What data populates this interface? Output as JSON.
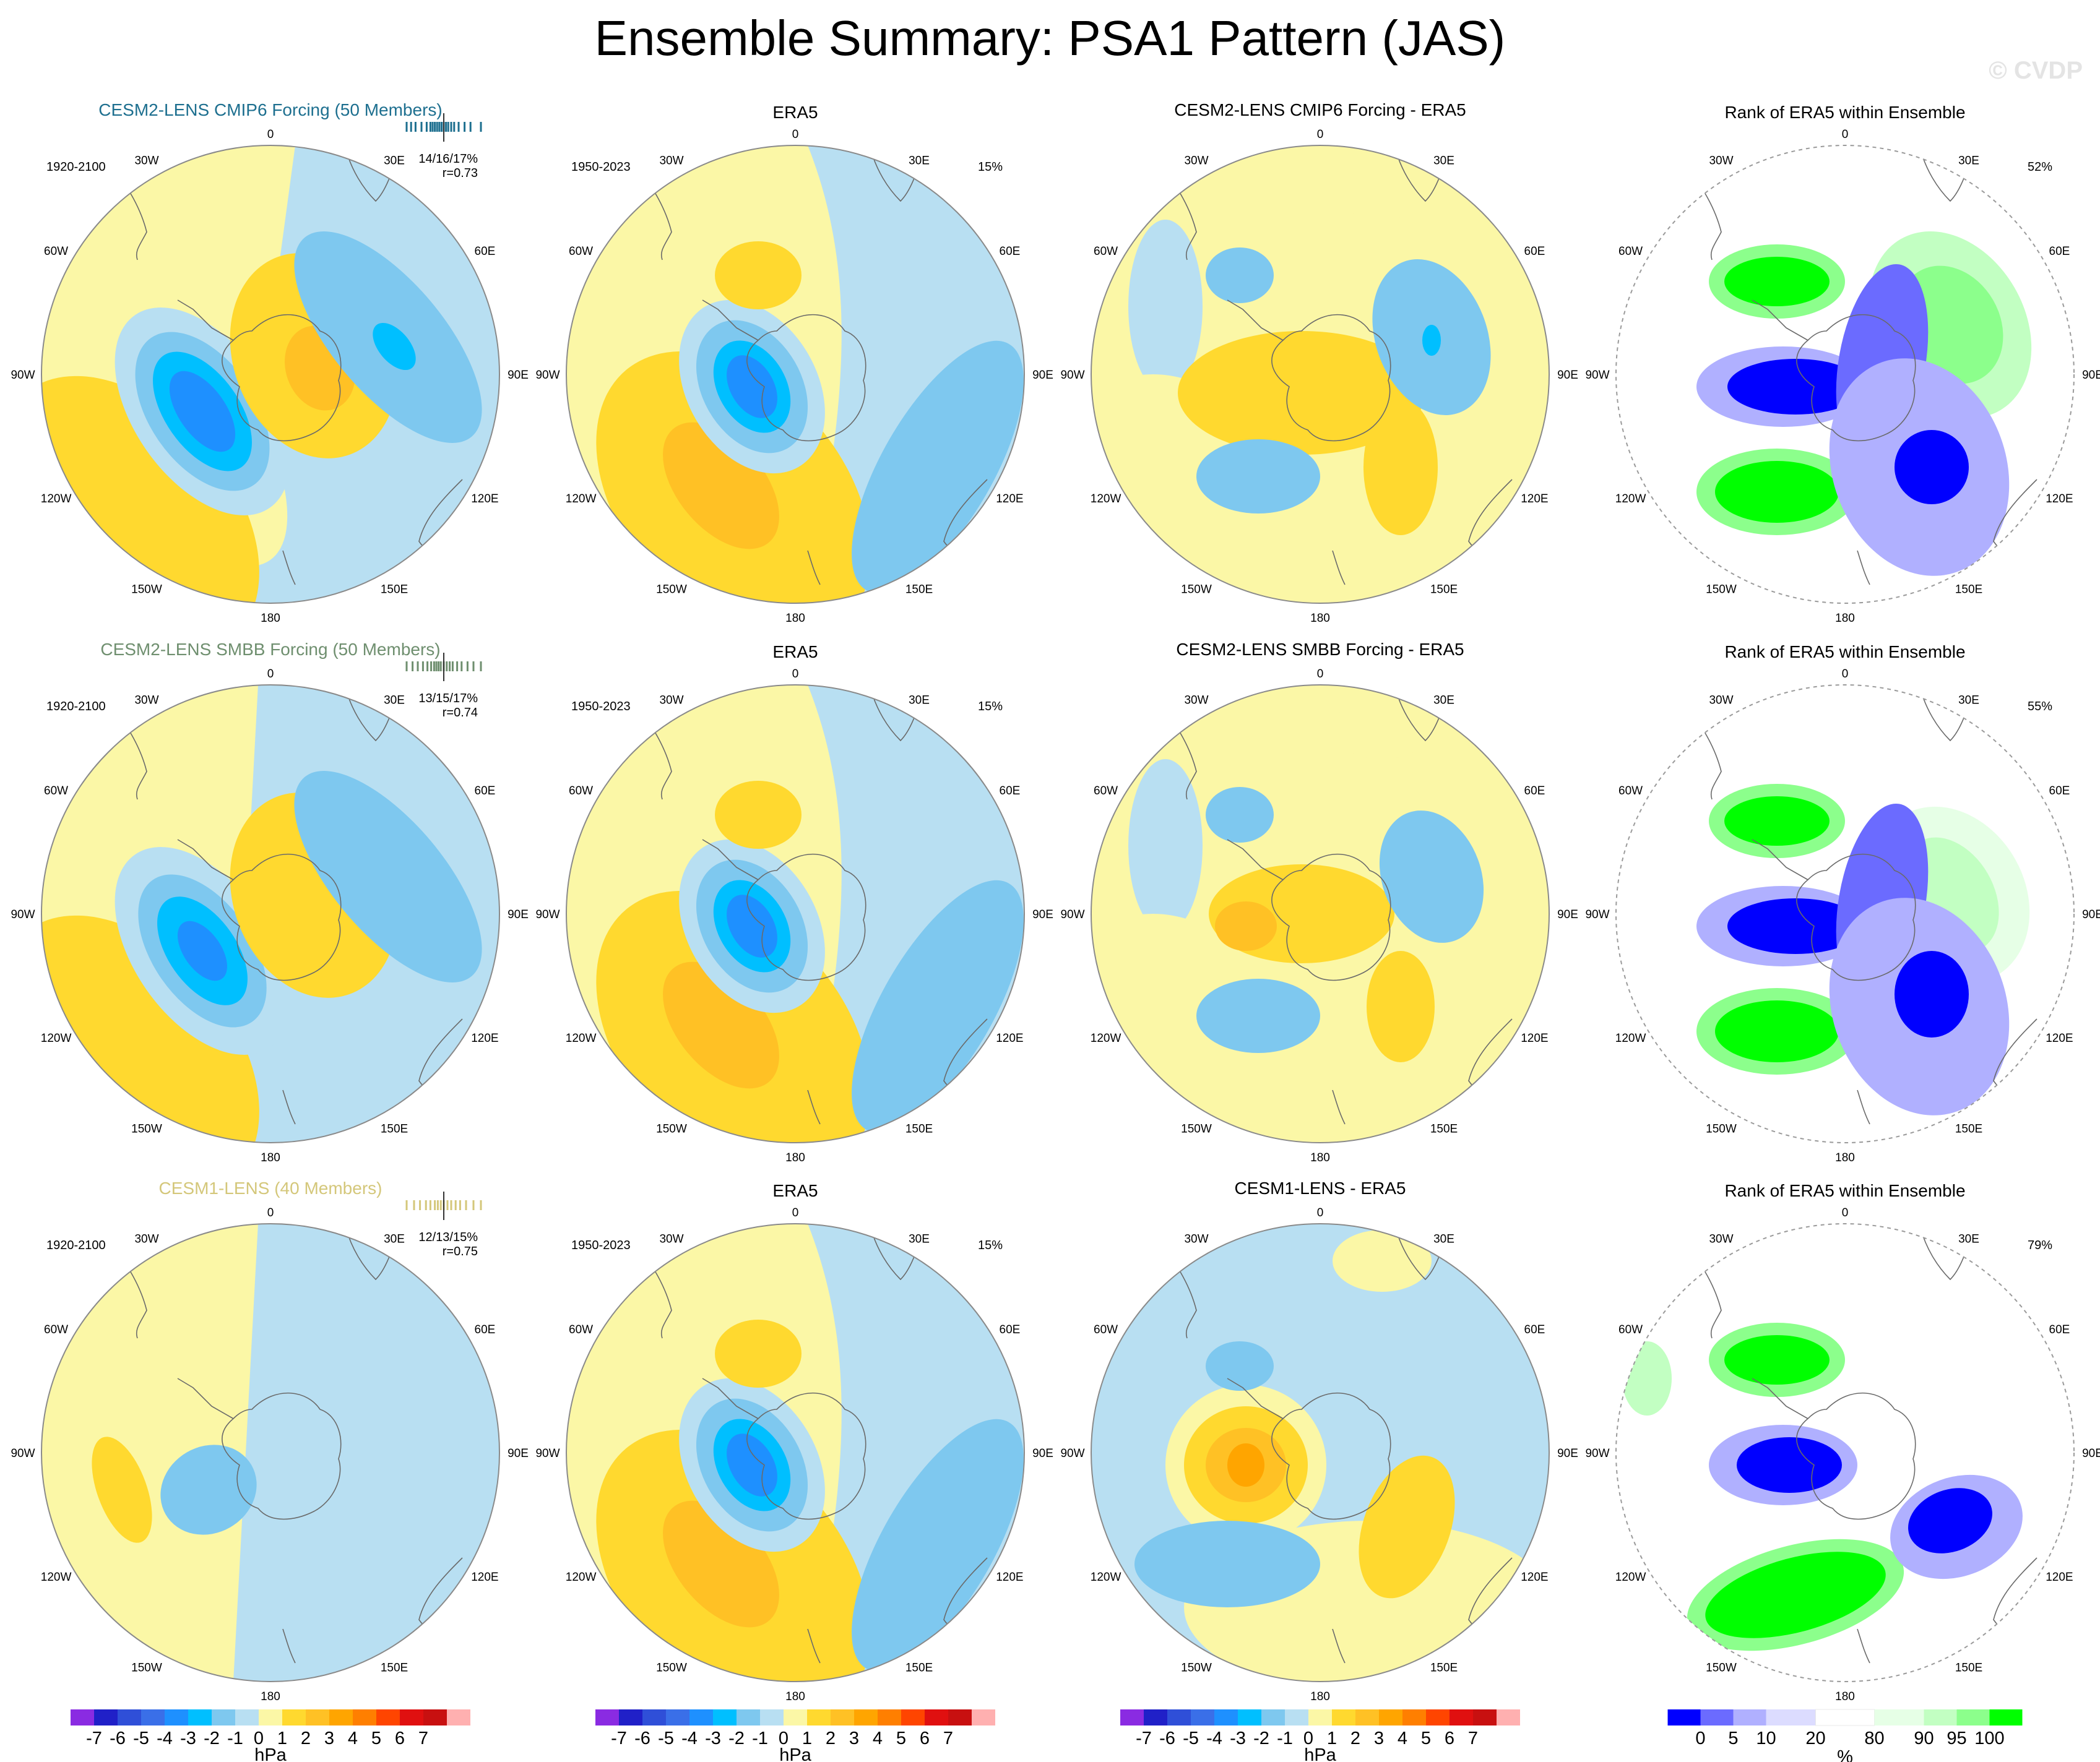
{
  "title": "Ensemble Summary: PSA1 Pattern (JAS)",
  "copyright": "© CVDP",
  "lon_labels": [
    "0",
    "30E",
    "60E",
    "90E",
    "120E",
    "150E",
    "180",
    "150W",
    "120W",
    "90W",
    "60W",
    "30W"
  ],
  "rows": [
    {
      "model_title": "CESM2-LENS CMIP6 Forcing (50 Members)",
      "model_color": "#1d6f8f",
      "model_period": "1920-2100",
      "model_stats": "14/16/17%",
      "model_r": "r=0.73",
      "ens_ticks": [
        0.0,
        0.06,
        0.12,
        0.2,
        0.27,
        0.32,
        0.35,
        0.38,
        0.41,
        0.44,
        0.47,
        0.5,
        0.53,
        0.56,
        0.6,
        0.64,
        0.7,
        0.78,
        0.86,
        1.0
      ],
      "obs_title": "ERA5",
      "obs_period": "1950-2023",
      "obs_pct": "15%",
      "diff_title": "CESM2-LENS CMIP6 Forcing - ERA5",
      "rank_title": "Rank of ERA5 within Ensemble",
      "rank_pct": "52%"
    },
    {
      "model_title": "CESM2-LENS SMBB Forcing (50 Members)",
      "model_color": "#6f8f6f",
      "model_period": "1920-2100",
      "model_stats": "13/15/17%",
      "model_r": "r=0.74",
      "ens_ticks": [
        0.0,
        0.08,
        0.15,
        0.22,
        0.28,
        0.33,
        0.37,
        0.4,
        0.43,
        0.46,
        0.5,
        0.54,
        0.58,
        0.62,
        0.68,
        0.74,
        0.82,
        0.9,
        1.0
      ],
      "obs_title": "ERA5",
      "obs_period": "1950-2023",
      "obs_pct": "15%",
      "diff_title": "CESM2-LENS SMBB Forcing - ERA5",
      "rank_title": "Rank of ERA5 within Ensemble",
      "rank_pct": "55%"
    },
    {
      "model_title": "CESM1-LENS (40 Members)",
      "model_color": "#d4c77a",
      "model_period": "1920-2100",
      "model_stats": "12/13/15%",
      "model_r": "r=0.75",
      "ens_ticks": [
        0.0,
        0.1,
        0.18,
        0.26,
        0.32,
        0.38,
        0.42,
        0.46,
        0.5,
        0.55,
        0.6,
        0.66,
        0.72,
        0.8,
        0.9,
        1.0
      ],
      "obs_title": "ERA5",
      "obs_period": "1950-2023",
      "obs_pct": "15%",
      "diff_title": "CESM1-LENS - ERA5",
      "rank_title": "Rank of ERA5 within Ensemble",
      "rank_pct": "79%"
    }
  ],
  "hpa_colorbar": {
    "colors": [
      "#8a2be2",
      "#2020c8",
      "#2f4fd8",
      "#3a6fe8",
      "#1e90ff",
      "#00bfff",
      "#7ec8ef",
      "#b8dff2",
      "#fbf7a6",
      "#ffd92f",
      "#ffc125",
      "#ffa500",
      "#ff7f00",
      "#ff4500",
      "#e01010",
      "#c81010",
      "#ffb0b0"
    ],
    "labels": [
      "-7",
      "-6",
      "-5",
      "-4",
      "-3",
      "-2",
      "-1",
      "0",
      "1",
      "2",
      "3",
      "4",
      "5",
      "6",
      "7"
    ],
    "units": "hPa"
  },
  "pct_colorbar": {
    "colors": [
      "#0000ff",
      "#6b6bff",
      "#b0b0ff",
      "#dcdcff",
      "#ffffff",
      "#e6ffe6",
      "#c2ffc2",
      "#8cff8c",
      "#00ff00"
    ],
    "labels": [
      "0",
      "5",
      "10",
      "20",
      "80",
      "90",
      "95",
      "100"
    ],
    "units": "%"
  }
}
